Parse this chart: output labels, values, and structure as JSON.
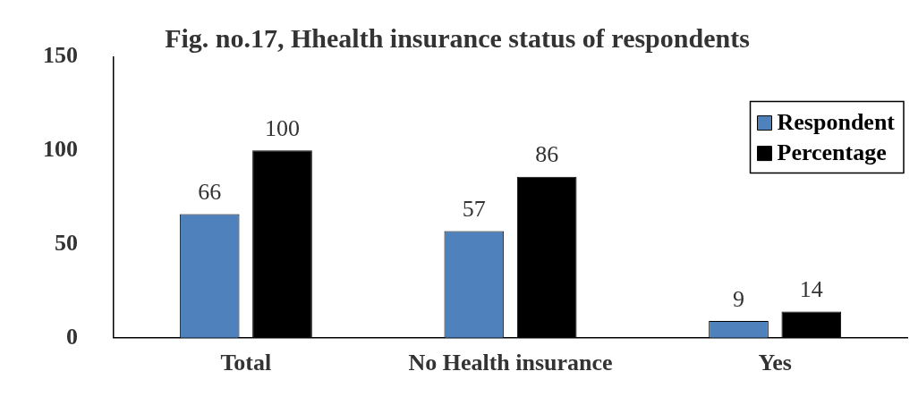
{
  "chart_data": {
    "type": "bar",
    "title": "Fig. no.17, Hhealth insurance status of respondents",
    "categories": [
      "Total",
      "No Health insurance",
      "Yes"
    ],
    "series": [
      {
        "name": "Respondent",
        "color": "#4f81bd",
        "values": [
          66,
          57,
          9
        ]
      },
      {
        "name": "Percentage",
        "color": "#000000",
        "values": [
          100,
          86,
          14
        ]
      }
    ],
    "ylim": [
      0,
      150
    ],
    "yticks": [
      0,
      50,
      100,
      150
    ],
    "grid": false,
    "legend": "top right",
    "data_labels": true
  }
}
